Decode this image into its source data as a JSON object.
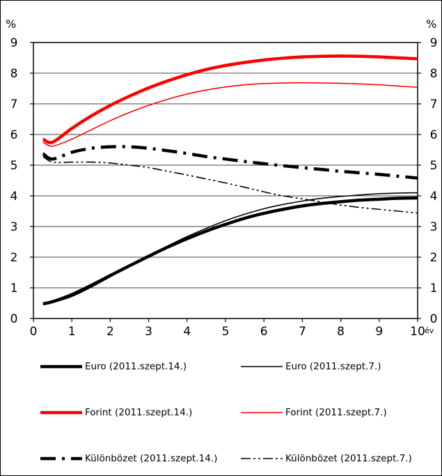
{
  "chart_data": {
    "type": "line",
    "ylabel_left": "%",
    "ylabel_right": "%",
    "xunit": "év",
    "xlim": [
      0,
      10
    ],
    "ylim": [
      0,
      9
    ],
    "x_ticks": [
      "0",
      "1",
      "2",
      "3",
      "4",
      "5",
      "6",
      "7",
      "8",
      "9",
      "10"
    ],
    "y_ticks": [
      "0",
      "1",
      "2",
      "3",
      "4",
      "5",
      "6",
      "7",
      "8",
      "9"
    ],
    "grid": true,
    "legend_position": "bottom",
    "series": [
      {
        "name": "Euro (2011.szept.14.)",
        "color": "#000000",
        "style": "solid-thick",
        "points": [
          [
            0.25,
            0.48
          ],
          [
            0.5,
            0.55
          ],
          [
            1,
            0.78
          ],
          [
            1.5,
            1.08
          ],
          [
            2,
            1.4
          ],
          [
            2.5,
            1.72
          ],
          [
            3,
            2.03
          ],
          [
            3.5,
            2.33
          ],
          [
            4,
            2.6
          ],
          [
            4.5,
            2.85
          ],
          [
            5,
            3.07
          ],
          [
            5.5,
            3.27
          ],
          [
            6,
            3.43
          ],
          [
            6.5,
            3.56
          ],
          [
            7,
            3.67
          ],
          [
            7.5,
            3.75
          ],
          [
            8,
            3.81
          ],
          [
            8.5,
            3.86
          ],
          [
            9,
            3.89
          ],
          [
            9.5,
            3.92
          ],
          [
            10,
            3.93
          ]
        ]
      },
      {
        "name": "Euro (2011.szept.7.)",
        "color": "#000000",
        "style": "solid-thin",
        "points": [
          [
            0.25,
            0.45
          ],
          [
            0.5,
            0.52
          ],
          [
            1,
            0.72
          ],
          [
            1.5,
            1.02
          ],
          [
            2,
            1.36
          ],
          [
            2.5,
            1.71
          ],
          [
            3,
            2.04
          ],
          [
            3.5,
            2.37
          ],
          [
            4,
            2.67
          ],
          [
            4.5,
            2.94
          ],
          [
            5,
            3.19
          ],
          [
            5.5,
            3.4
          ],
          [
            6,
            3.58
          ],
          [
            6.5,
            3.72
          ],
          [
            7,
            3.83
          ],
          [
            7.5,
            3.92
          ],
          [
            8,
            3.98
          ],
          [
            8.5,
            4.03
          ],
          [
            9,
            4.07
          ],
          [
            9.5,
            4.09
          ],
          [
            10,
            4.1
          ]
        ]
      },
      {
        "name": "Forint (2011.szept.14.)",
        "color": "#ff0000",
        "style": "solid-thick",
        "points": [
          [
            0.25,
            5.85
          ],
          [
            0.5,
            5.75
          ],
          [
            1,
            6.2
          ],
          [
            1.5,
            6.6
          ],
          [
            2,
            6.95
          ],
          [
            2.5,
            7.25
          ],
          [
            3,
            7.52
          ],
          [
            3.5,
            7.75
          ],
          [
            4,
            7.95
          ],
          [
            4.5,
            8.12
          ],
          [
            5,
            8.25
          ],
          [
            5.5,
            8.35
          ],
          [
            6,
            8.43
          ],
          [
            6.5,
            8.49
          ],
          [
            7,
            8.53
          ],
          [
            7.5,
            8.55
          ],
          [
            8,
            8.56
          ],
          [
            8.5,
            8.55
          ],
          [
            9,
            8.53
          ],
          [
            9.5,
            8.5
          ],
          [
            10,
            8.47
          ]
        ]
      },
      {
        "name": "Forint (2011.szept.7.)",
        "color": "#ff0000",
        "style": "solid-thin",
        "points": [
          [
            0.25,
            5.75
          ],
          [
            0.5,
            5.62
          ],
          [
            1,
            5.85
          ],
          [
            1.5,
            6.15
          ],
          [
            2,
            6.45
          ],
          [
            2.5,
            6.72
          ],
          [
            3,
            6.95
          ],
          [
            3.5,
            7.15
          ],
          [
            4,
            7.32
          ],
          [
            4.5,
            7.45
          ],
          [
            5,
            7.55
          ],
          [
            5.5,
            7.62
          ],
          [
            6,
            7.66
          ],
          [
            6.5,
            7.68
          ],
          [
            7,
            7.69
          ],
          [
            7.5,
            7.68
          ],
          [
            8,
            7.67
          ],
          [
            8.5,
            7.65
          ],
          [
            9,
            7.62
          ],
          [
            9.5,
            7.58
          ],
          [
            10,
            7.54
          ]
        ]
      },
      {
        "name": "Különbözet (2011.szept.14.)",
        "color": "#000000",
        "style": "dashdot-thick",
        "points": [
          [
            0.25,
            5.38
          ],
          [
            0.5,
            5.2
          ],
          [
            1,
            5.42
          ],
          [
            1.5,
            5.55
          ],
          [
            2,
            5.6
          ],
          [
            2.5,
            5.6
          ],
          [
            3,
            5.55
          ],
          [
            3.5,
            5.47
          ],
          [
            4,
            5.38
          ],
          [
            4.5,
            5.28
          ],
          [
            5,
            5.2
          ],
          [
            5.5,
            5.12
          ],
          [
            6,
            5.05
          ],
          [
            6.5,
            4.98
          ],
          [
            7,
            4.92
          ],
          [
            7.5,
            4.86
          ],
          [
            8,
            4.8
          ],
          [
            8.5,
            4.75
          ],
          [
            9,
            4.7
          ],
          [
            9.5,
            4.64
          ],
          [
            10,
            4.58
          ]
        ]
      },
      {
        "name": "Különbözet (2011.szept.7.)",
        "color": "#000000",
        "style": "dashdotdot-thin",
        "points": [
          [
            0.25,
            5.28
          ],
          [
            0.5,
            5.1
          ],
          [
            1,
            5.1
          ],
          [
            1.5,
            5.1
          ],
          [
            2,
            5.07
          ],
          [
            2.5,
            5.0
          ],
          [
            3,
            4.92
          ],
          [
            3.5,
            4.8
          ],
          [
            4,
            4.68
          ],
          [
            4.5,
            4.55
          ],
          [
            5,
            4.42
          ],
          [
            5.5,
            4.28
          ],
          [
            6,
            4.13
          ],
          [
            6.5,
            4.0
          ],
          [
            7,
            3.9
          ],
          [
            7.5,
            3.8
          ],
          [
            8,
            3.7
          ],
          [
            8.5,
            3.62
          ],
          [
            9,
            3.56
          ],
          [
            9.5,
            3.5
          ],
          [
            10,
            3.44
          ]
        ]
      }
    ]
  }
}
